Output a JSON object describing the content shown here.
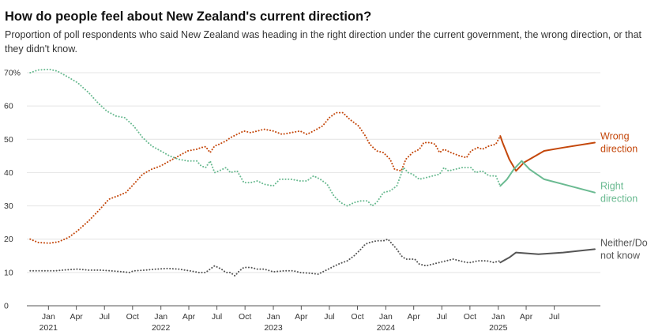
{
  "chart_data": {
    "type": "line",
    "title": "How do people feel about New Zealand's current direction?",
    "subtitle": "Proportion of poll respondents who said New Zealand was heading in the right direction under the current government, the wrong direction, or that they didn't know.",
    "ylim": [
      0,
      70
    ],
    "yticks": [
      {
        "value": 0,
        "label": "0"
      },
      {
        "value": 10,
        "label": "10"
      },
      {
        "value": 20,
        "label": "20"
      },
      {
        "value": 30,
        "label": "30"
      },
      {
        "value": 40,
        "label": "40"
      },
      {
        "value": 50,
        "label": "50"
      },
      {
        "value": 60,
        "label": "60"
      },
      {
        "value": 70,
        "label": "70%"
      }
    ],
    "xlim": [
      2020.85,
      2025.95
    ],
    "xticks": [
      {
        "value": 2021.042,
        "month": "Jan",
        "year": "2021"
      },
      {
        "value": 2021.29,
        "month": "Apr",
        "year": ""
      },
      {
        "value": 2021.54,
        "month": "Jul",
        "year": ""
      },
      {
        "value": 2021.79,
        "month": "Oct",
        "year": ""
      },
      {
        "value": 2022.042,
        "month": "Jan",
        "year": "2022"
      },
      {
        "value": 2022.29,
        "month": "Apr",
        "year": ""
      },
      {
        "value": 2022.54,
        "month": "Jul",
        "year": ""
      },
      {
        "value": 2022.79,
        "month": "Oct",
        "year": ""
      },
      {
        "value": 2023.042,
        "month": "Jan",
        "year": "2023"
      },
      {
        "value": 2023.29,
        "month": "Apr",
        "year": ""
      },
      {
        "value": 2023.54,
        "month": "Jul",
        "year": ""
      },
      {
        "value": 2023.79,
        "month": "Oct",
        "year": ""
      },
      {
        "value": 2024.042,
        "month": "Jan",
        "year": "2024"
      },
      {
        "value": 2024.29,
        "month": "Apr",
        "year": ""
      },
      {
        "value": 2024.54,
        "month": "Jul",
        "year": ""
      },
      {
        "value": 2024.79,
        "month": "Oct",
        "year": ""
      },
      {
        "value": 2025.042,
        "month": "Jan",
        "year": "2025"
      },
      {
        "value": 2025.29,
        "month": "Apr",
        "year": ""
      },
      {
        "value": 2025.54,
        "month": "Jul",
        "year": ""
      }
    ],
    "gridlines": true,
    "previous_government_end": 2025.06,
    "series": [
      {
        "name": "Wrong direction",
        "label_lines": [
          "Wrong",
          "direction"
        ],
        "color": "#c4470b",
        "values": [
          [
            2020.88,
            20
          ],
          [
            2020.95,
            19
          ],
          [
            2021.05,
            18.8
          ],
          [
            2021.13,
            19.2
          ],
          [
            2021.22,
            20.5
          ],
          [
            2021.3,
            22.5
          ],
          [
            2021.4,
            25.5
          ],
          [
            2021.5,
            29
          ],
          [
            2021.58,
            32
          ],
          [
            2021.66,
            33
          ],
          [
            2021.73,
            34
          ],
          [
            2021.8,
            36.5
          ],
          [
            2021.88,
            39.5
          ],
          [
            2021.96,
            41
          ],
          [
            2022.04,
            42
          ],
          [
            2022.12,
            43.5
          ],
          [
            2022.2,
            45
          ],
          [
            2022.28,
            46.5
          ],
          [
            2022.36,
            47
          ],
          [
            2022.4,
            47.5
          ],
          [
            2022.44,
            47.8
          ],
          [
            2022.48,
            46
          ],
          [
            2022.52,
            48
          ],
          [
            2022.56,
            48.5
          ],
          [
            2022.62,
            49.5
          ],
          [
            2022.66,
            50.5
          ],
          [
            2022.72,
            51.5
          ],
          [
            2022.78,
            52.5
          ],
          [
            2022.84,
            52
          ],
          [
            2022.9,
            52.5
          ],
          [
            2022.96,
            53
          ],
          [
            2023.04,
            52.5
          ],
          [
            2023.12,
            51.5
          ],
          [
            2023.2,
            52
          ],
          [
            2023.28,
            52.5
          ],
          [
            2023.34,
            51.5
          ],
          [
            2023.4,
            52.5
          ],
          [
            2023.48,
            54
          ],
          [
            2023.54,
            56.5
          ],
          [
            2023.6,
            58
          ],
          [
            2023.66,
            58
          ],
          [
            2023.72,
            56
          ],
          [
            2023.8,
            54
          ],
          [
            2023.86,
            51
          ],
          [
            2023.9,
            48.5
          ],
          [
            2023.96,
            46.5
          ],
          [
            2024.02,
            46
          ],
          [
            2024.08,
            44
          ],
          [
            2024.12,
            41
          ],
          [
            2024.18,
            40.5
          ],
          [
            2024.22,
            44
          ],
          [
            2024.28,
            46
          ],
          [
            2024.34,
            47
          ],
          [
            2024.38,
            49
          ],
          [
            2024.44,
            49
          ],
          [
            2024.48,
            48.5
          ],
          [
            2024.52,
            46
          ],
          [
            2024.56,
            47
          ],
          [
            2024.62,
            46
          ],
          [
            2024.7,
            45
          ],
          [
            2024.76,
            44.5
          ],
          [
            2024.8,
            46.5
          ],
          [
            2024.86,
            47.5
          ],
          [
            2024.9,
            47
          ],
          [
            2024.96,
            48
          ],
          [
            2025.02,
            48.5
          ],
          [
            2025.06,
            51
          ]
        ],
        "values_current": [
          [
            2025.06,
            51
          ],
          [
            2025.08,
            49
          ],
          [
            2025.14,
            44
          ],
          [
            2025.2,
            40.5
          ],
          [
            2025.27,
            43
          ],
          [
            2025.45,
            46.5
          ],
          [
            2025.62,
            47.5
          ],
          [
            2025.9,
            49
          ]
        ]
      },
      {
        "name": "Right direction",
        "label_lines": [
          "Right",
          "direction"
        ],
        "color": "#6aba91",
        "values": [
          [
            2020.88,
            70
          ],
          [
            2020.95,
            70.8
          ],
          [
            2021.05,
            71
          ],
          [
            2021.12,
            70.5
          ],
          [
            2021.2,
            69
          ],
          [
            2021.3,
            67
          ],
          [
            2021.4,
            64
          ],
          [
            2021.48,
            61
          ],
          [
            2021.56,
            58.5
          ],
          [
            2021.64,
            57
          ],
          [
            2021.72,
            56.5
          ],
          [
            2021.8,
            54
          ],
          [
            2021.88,
            50.5
          ],
          [
            2021.96,
            48
          ],
          [
            2022.04,
            46.5
          ],
          [
            2022.12,
            45
          ],
          [
            2022.2,
            44
          ],
          [
            2022.28,
            43.5
          ],
          [
            2022.36,
            43.5
          ],
          [
            2022.4,
            42
          ],
          [
            2022.44,
            41.5
          ],
          [
            2022.48,
            43.5
          ],
          [
            2022.52,
            40
          ],
          [
            2022.56,
            40.5
          ],
          [
            2022.62,
            41.5
          ],
          [
            2022.66,
            40
          ],
          [
            2022.72,
            40.5
          ],
          [
            2022.78,
            37
          ],
          [
            2022.84,
            37
          ],
          [
            2022.9,
            37.5
          ],
          [
            2022.96,
            36.5
          ],
          [
            2023.04,
            36
          ],
          [
            2023.1,
            38
          ],
          [
            2023.2,
            38
          ],
          [
            2023.28,
            37.5
          ],
          [
            2023.34,
            37.5
          ],
          [
            2023.4,
            39
          ],
          [
            2023.46,
            38
          ],
          [
            2023.52,
            36.5
          ],
          [
            2023.58,
            33
          ],
          [
            2023.64,
            31
          ],
          [
            2023.7,
            30
          ],
          [
            2023.76,
            31
          ],
          [
            2023.82,
            31.5
          ],
          [
            2023.88,
            31.5
          ],
          [
            2023.92,
            30
          ],
          [
            2023.96,
            31
          ],
          [
            2024.02,
            34
          ],
          [
            2024.08,
            34.5
          ],
          [
            2024.14,
            36
          ],
          [
            2024.2,
            41.5
          ],
          [
            2024.24,
            40
          ],
          [
            2024.28,
            39.5
          ],
          [
            2024.34,
            38
          ],
          [
            2024.4,
            38.5
          ],
          [
            2024.46,
            39
          ],
          [
            2024.52,
            39.5
          ],
          [
            2024.56,
            41.5
          ],
          [
            2024.6,
            40.5
          ],
          [
            2024.66,
            41
          ],
          [
            2024.72,
            41.5
          ],
          [
            2024.8,
            41.5
          ],
          [
            2024.84,
            40
          ],
          [
            2024.9,
            40.5
          ],
          [
            2024.96,
            39
          ],
          [
            2025.02,
            39
          ],
          [
            2025.06,
            36
          ]
        ],
        "values_current": [
          [
            2025.06,
            36
          ],
          [
            2025.12,
            38
          ],
          [
            2025.18,
            41
          ],
          [
            2025.25,
            43.5
          ],
          [
            2025.32,
            41
          ],
          [
            2025.45,
            38
          ],
          [
            2025.62,
            36.5
          ],
          [
            2025.9,
            34
          ]
        ]
      },
      {
        "name": "Neither/Do not know",
        "label_lines": [
          "Neither/Do",
          "not know"
        ],
        "color": "#555555",
        "values": [
          [
            2020.88,
            10.5
          ],
          [
            2021.0,
            10.5
          ],
          [
            2021.1,
            10.5
          ],
          [
            2021.2,
            10.8
          ],
          [
            2021.3,
            11
          ],
          [
            2021.4,
            10.7
          ],
          [
            2021.5,
            10.7
          ],
          [
            2021.6,
            10.5
          ],
          [
            2021.7,
            10.2
          ],
          [
            2021.76,
            10
          ],
          [
            2021.8,
            10.5
          ],
          [
            2021.9,
            10.7
          ],
          [
            2022.0,
            11
          ],
          [
            2022.1,
            11.2
          ],
          [
            2022.2,
            11
          ],
          [
            2022.3,
            10.5
          ],
          [
            2022.38,
            10
          ],
          [
            2022.44,
            10
          ],
          [
            2022.48,
            11
          ],
          [
            2022.52,
            12
          ],
          [
            2022.58,
            11
          ],
          [
            2022.62,
            10
          ],
          [
            2022.66,
            10
          ],
          [
            2022.7,
            9
          ],
          [
            2022.74,
            10.5
          ],
          [
            2022.78,
            11.5
          ],
          [
            2022.84,
            11.5
          ],
          [
            2022.9,
            11
          ],
          [
            2022.96,
            11
          ],
          [
            2023.04,
            10.2
          ],
          [
            2023.14,
            10.5
          ],
          [
            2023.22,
            10.5
          ],
          [
            2023.28,
            10
          ],
          [
            2023.36,
            9.8
          ],
          [
            2023.44,
            9.5
          ],
          [
            2023.5,
            10.5
          ],
          [
            2023.56,
            11.5
          ],
          [
            2023.62,
            12.5
          ],
          [
            2023.7,
            13.5
          ],
          [
            2023.76,
            15
          ],
          [
            2023.82,
            17
          ],
          [
            2023.86,
            18.5
          ],
          [
            2023.9,
            19
          ],
          [
            2023.96,
            19.5
          ],
          [
            2024.02,
            19.5
          ],
          [
            2024.06,
            20
          ],
          [
            2024.1,
            18.5
          ],
          [
            2024.14,
            17
          ],
          [
            2024.18,
            15
          ],
          [
            2024.22,
            14
          ],
          [
            2024.3,
            14
          ],
          [
            2024.34,
            12.5
          ],
          [
            2024.4,
            12
          ],
          [
            2024.46,
            12.5
          ],
          [
            2024.52,
            13
          ],
          [
            2024.58,
            13.5
          ],
          [
            2024.64,
            14
          ],
          [
            2024.7,
            13.5
          ],
          [
            2024.76,
            13
          ],
          [
            2024.8,
            13
          ],
          [
            2024.86,
            13.5
          ],
          [
            2024.94,
            13.5
          ],
          [
            2025.0,
            13
          ],
          [
            2025.06,
            13.5
          ]
        ],
        "values_current": [
          [
            2025.06,
            13
          ],
          [
            2025.14,
            14.5
          ],
          [
            2025.2,
            16
          ],
          [
            2025.4,
            15.5
          ],
          [
            2025.62,
            16
          ],
          [
            2025.9,
            17
          ]
        ]
      }
    ]
  },
  "colors": {
    "gridline": "#e4e4e4",
    "axis": "#555555",
    "tick_text": "#333333",
    "background": "#ffffff"
  }
}
